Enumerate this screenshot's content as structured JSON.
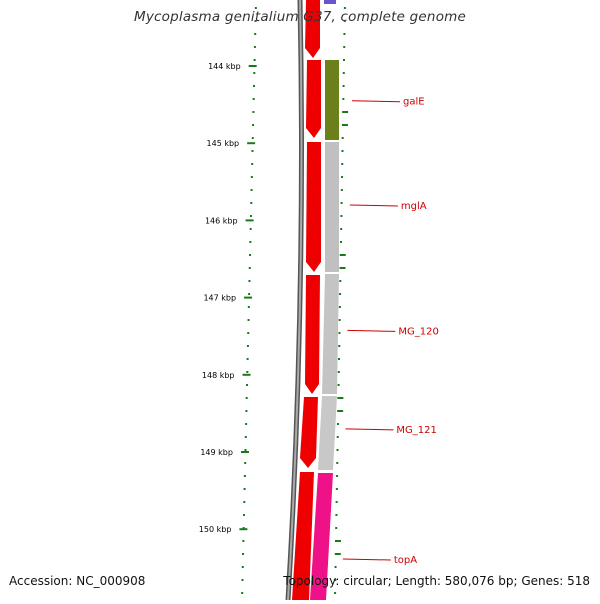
{
  "title": "Mycoplasma genitalium G37, complete genome",
  "footer": {
    "accession": "Accession: NC_000908",
    "summary": "Topology: circular; Length: 580,076 bp; Genes: 518"
  },
  "colors": {
    "backbone": "#888888",
    "forward_strand": "#ee0000",
    "gene_olive": "#6b7f1a",
    "gene_grey": "#c0c0c0",
    "gene_pink": "#ee1188",
    "gene_purple": "#6655cc",
    "gc_skew": "#1a7a1a",
    "label": "#cc0000"
  },
  "ticks": [
    {
      "label": "144 kbp",
      "kbp": 144
    },
    {
      "label": "145 kbp",
      "kbp": 145
    },
    {
      "label": "146 kbp",
      "kbp": 146
    },
    {
      "label": "147 kbp",
      "kbp": 147
    },
    {
      "label": "148 kbp",
      "kbp": 148
    },
    {
      "label": "149 kbp",
      "kbp": 149
    },
    {
      "label": "150 kbp",
      "kbp": 150
    }
  ],
  "genes": [
    {
      "name": "galE",
      "track": "olive",
      "start_kbp": 143.95,
      "end_kbp": 144.95
    },
    {
      "name": "mglA",
      "track": "grey",
      "start_kbp": 144.95,
      "end_kbp": 146.65
    },
    {
      "name": "MG_120",
      "track": "grey",
      "start_kbp": 146.65,
      "end_kbp": 148.2
    },
    {
      "name": "MG_121",
      "track": "grey",
      "start_kbp": 148.2,
      "end_kbp": 149.2
    },
    {
      "name": "topA",
      "track": "pink",
      "start_kbp": 149.2,
      "end_kbp": 151.0
    }
  ]
}
